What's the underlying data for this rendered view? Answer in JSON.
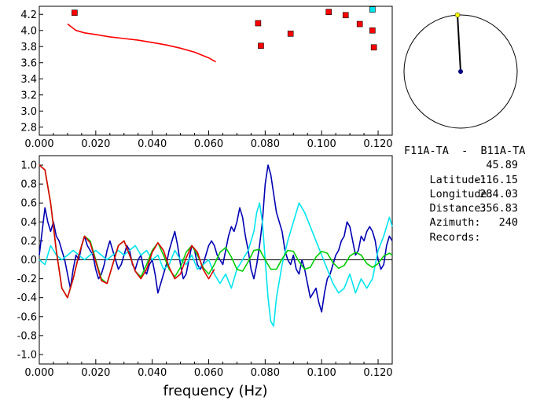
{
  "station": {
    "pair": "F11A-TA  -  B11A-TA",
    "rows": [
      {
        "label": "Latitude:",
        "value": "45.89"
      },
      {
        "label": "Longitude:",
        "value": "-116.15"
      },
      {
        "label": "Distance:",
        "value": "284.03"
      },
      {
        "label": "Azimuth:",
        "value": "356.83"
      },
      {
        "label": "Records:",
        "value": "240"
      }
    ]
  },
  "azimuth_dial": {
    "azimuth_deg": 356.83,
    "needle_color": "#000000",
    "tip_color": "#ffff00",
    "center_color": "#000080"
  },
  "chart_data": [
    {
      "type": "scatter",
      "xlim": [
        0.0,
        0.125
      ],
      "ylim": [
        2.7,
        4.3
      ],
      "xticks": [
        "0.000",
        "0.020",
        "0.040",
        "0.060",
        "0.080",
        "0.100",
        "0.120"
      ],
      "yticks": [
        "2.8",
        "3.0",
        "3.2",
        "3.4",
        "3.6",
        "3.8",
        "4.0",
        "4.2"
      ],
      "series": [
        {
          "color": "#ff0000",
          "style": "line",
          "x": [
            0.01,
            0.013,
            0.016,
            0.02,
            0.025,
            0.03,
            0.035,
            0.04,
            0.045,
            0.05,
            0.055,
            0.06,
            0.0625
          ],
          "y": [
            4.08,
            4.0,
            3.97,
            3.95,
            3.92,
            3.9,
            3.88,
            3.85,
            3.82,
            3.78,
            3.73,
            3.66,
            3.61
          ]
        },
        {
          "color": "#ff0000",
          "style": "markers",
          "x": [
            0.0125,
            0.0775,
            0.0785,
            0.089,
            0.1025,
            0.1085,
            0.1135,
            0.118,
            0.1185
          ],
          "y": [
            4.22,
            4.09,
            3.81,
            3.96,
            4.23,
            4.19,
            4.08,
            4.0,
            3.79
          ]
        },
        {
          "color": "#00e5ee",
          "style": "markers",
          "x": [
            0.118
          ],
          "y": [
            4.26
          ]
        }
      ]
    },
    {
      "type": "line",
      "xlim": [
        0.0,
        0.125
      ],
      "ylim": [
        -1.1,
        1.1
      ],
      "xlabel": "frequency (Hz)",
      "xticks": [
        "0.000",
        "0.020",
        "0.040",
        "0.060",
        "0.080",
        "0.100",
        "0.120"
      ],
      "yticks": [
        "1.0",
        "0.8",
        "0.6",
        "0.4",
        "0.2",
        "0.0",
        "-0.2",
        "-0.4",
        "-0.6",
        "-0.8",
        "-1.0"
      ],
      "series": [
        {
          "color": "#0000b4",
          "x": [
            0.0,
            0.002,
            0.003,
            0.004,
            0.005,
            0.006,
            0.007,
            0.008,
            0.009,
            0.01,
            0.011,
            0.012,
            0.013,
            0.014,
            0.015,
            0.016,
            0.017,
            0.018,
            0.019,
            0.02,
            0.021,
            0.022,
            0.023,
            0.024,
            0.025,
            0.026,
            0.027,
            0.028,
            0.029,
            0.03,
            0.031,
            0.032,
            0.033,
            0.034,
            0.035,
            0.036,
            0.037,
            0.038,
            0.039,
            0.04,
            0.041,
            0.042,
            0.043,
            0.044,
            0.045,
            0.046,
            0.047,
            0.048,
            0.049,
            0.05,
            0.051,
            0.052,
            0.053,
            0.054,
            0.055,
            0.056,
            0.057,
            0.058,
            0.059,
            0.06,
            0.061,
            0.062,
            0.063,
            0.064,
            0.065,
            0.066,
            0.067,
            0.068,
            0.069,
            0.07,
            0.071,
            0.072,
            0.073,
            0.074,
            0.075,
            0.076,
            0.077,
            0.078,
            0.079,
            0.08,
            0.081,
            0.082,
            0.083,
            0.084,
            0.085,
            0.086,
            0.087,
            0.088,
            0.089,
            0.09,
            0.091,
            0.092,
            0.093,
            0.094,
            0.095,
            0.096,
            0.097,
            0.098,
            0.099,
            0.1,
            0.101,
            0.102,
            0.103,
            0.104,
            0.105,
            0.106,
            0.107,
            0.108,
            0.109,
            0.11,
            0.111,
            0.112,
            0.113,
            0.114,
            0.115,
            0.116,
            0.117,
            0.118,
            0.119,
            0.12,
            0.121,
            0.122,
            0.123,
            0.124,
            0.125
          ],
          "y": [
            0.05,
            0.55,
            0.4,
            0.3,
            0.4,
            0.25,
            0.2,
            0.1,
            0.0,
            -0.15,
            -0.3,
            -0.1,
            0.05,
            0.0,
            0.15,
            0.25,
            0.15,
            0.1,
            0.05,
            -0.1,
            -0.2,
            -0.15,
            -0.05,
            0.1,
            0.2,
            0.1,
            0.0,
            -0.1,
            -0.05,
            0.05,
            0.15,
            0.1,
            -0.05,
            -0.1,
            0.0,
            0.05,
            -0.1,
            -0.15,
            -0.05,
            0.0,
            -0.15,
            -0.35,
            -0.25,
            -0.15,
            -0.05,
            0.1,
            0.2,
            0.3,
            0.15,
            -0.05,
            -0.2,
            -0.15,
            0.0,
            0.15,
            0.1,
            -0.05,
            -0.1,
            -0.05,
            0.05,
            0.15,
            0.2,
            0.15,
            0.05,
            0.0,
            -0.05,
            0.1,
            0.25,
            0.35,
            0.3,
            0.4,
            0.55,
            0.45,
            0.25,
            0.1,
            -0.1,
            -0.2,
            -0.05,
            0.15,
            0.4,
            0.8,
            1.0,
            0.9,
            0.7,
            0.5,
            0.4,
            0.3,
            0.1,
            0.0,
            -0.05,
            0.05,
            -0.1,
            -0.15,
            0.0,
            -0.1,
            -0.25,
            -0.4,
            -0.35,
            -0.3,
            -0.45,
            -0.55,
            -0.35,
            -0.2,
            -0.15,
            -0.05,
            0.05,
            0.1,
            0.2,
            0.25,
            0.4,
            0.35,
            0.2,
            0.05,
            0.1,
            0.25,
            0.2,
            0.3,
            0.35,
            0.3,
            0.2,
            0.0,
            -0.1,
            -0.05,
            0.15,
            0.25,
            0.2
          ]
        },
        {
          "color": "#00e5ee",
          "x": [
            0.0,
            0.002,
            0.004,
            0.006,
            0.008,
            0.01,
            0.012,
            0.014,
            0.016,
            0.018,
            0.02,
            0.022,
            0.024,
            0.026,
            0.028,
            0.03,
            0.032,
            0.034,
            0.036,
            0.038,
            0.04,
            0.042,
            0.044,
            0.046,
            0.048,
            0.05,
            0.052,
            0.054,
            0.056,
            0.058,
            0.06,
            0.062,
            0.064,
            0.066,
            0.068,
            0.07,
            0.072,
            0.074,
            0.076,
            0.077,
            0.078,
            0.079,
            0.08,
            0.081,
            0.082,
            0.083,
            0.084,
            0.086,
            0.088,
            0.09,
            0.092,
            0.094,
            0.096,
            0.098,
            0.1,
            0.102,
            0.104,
            0.106,
            0.108,
            0.11,
            0.112,
            0.114,
            0.116,
            0.118,
            0.12,
            0.122,
            0.124,
            0.125
          ],
          "y": [
            0.0,
            -0.05,
            0.15,
            0.05,
            0.0,
            0.05,
            0.1,
            0.05,
            0.0,
            0.05,
            0.1,
            0.05,
            0.0,
            0.05,
            0.1,
            0.05,
            0.1,
            0.15,
            0.05,
            0.1,
            0.0,
            0.05,
            -0.1,
            -0.05,
            0.1,
            0.0,
            -0.05,
            0.05,
            -0.1,
            -0.05,
            0.0,
            -0.15,
            -0.25,
            -0.15,
            -0.3,
            -0.1,
            0.0,
            0.1,
            0.3,
            0.5,
            0.6,
            0.4,
            0.0,
            -0.4,
            -0.65,
            -0.7,
            -0.4,
            -0.05,
            0.2,
            0.4,
            0.6,
            0.5,
            0.35,
            0.2,
            0.05,
            -0.1,
            -0.25,
            -0.35,
            -0.3,
            -0.15,
            -0.35,
            -0.2,
            -0.3,
            -0.2,
            0.1,
            0.25,
            0.45,
            0.35
          ]
        },
        {
          "color": "#00d000",
          "x": [
            0.0,
            0.002,
            0.004,
            0.006,
            0.008,
            0.01,
            0.012,
            0.014,
            0.016,
            0.018,
            0.02,
            0.022,
            0.024,
            0.026,
            0.028,
            0.03,
            0.032,
            0.034,
            0.036,
            0.038,
            0.04,
            0.042,
            0.044,
            0.046,
            0.048,
            0.05,
            0.052,
            0.054,
            0.056,
            0.058,
            0.06,
            0.062,
            0.064,
            0.066,
            0.068,
            0.07,
            0.072,
            0.074,
            0.076,
            0.078,
            0.08,
            0.082,
            0.084,
            0.086,
            0.088,
            0.09,
            0.092,
            0.094,
            0.096,
            0.098,
            0.1,
            0.102,
            0.104,
            0.106,
            0.108,
            0.11,
            0.112,
            0.114,
            0.116,
            0.118,
            0.12,
            0.122,
            0.124,
            0.125
          ],
          "y": [
            1.0,
            0.95,
            0.6,
            0.1,
            -0.3,
            -0.4,
            -0.2,
            0.05,
            0.25,
            0.2,
            0.0,
            -0.2,
            -0.25,
            -0.05,
            0.15,
            0.2,
            0.05,
            -0.12,
            -0.18,
            -0.05,
            0.1,
            0.18,
            0.05,
            -0.1,
            -0.18,
            -0.08,
            0.08,
            0.15,
            0.05,
            -0.08,
            -0.15,
            -0.05,
            0.08,
            0.13,
            0.03,
            -0.1,
            -0.12,
            -0.02,
            0.1,
            0.11,
            0.0,
            -0.1,
            -0.1,
            0.01,
            0.1,
            0.09,
            -0.02,
            -0.1,
            -0.08,
            0.03,
            0.09,
            0.07,
            -0.03,
            -0.09,
            -0.06,
            0.04,
            0.08,
            0.05,
            -0.04,
            -0.08,
            -0.04,
            0.04,
            0.07,
            0.05
          ]
        },
        {
          "color": "#e00000",
          "x": [
            0.0,
            0.002,
            0.004,
            0.006,
            0.008,
            0.01,
            0.012,
            0.014,
            0.016,
            0.018,
            0.02,
            0.022,
            0.024,
            0.026,
            0.028,
            0.03,
            0.032,
            0.034,
            0.036,
            0.038,
            0.04,
            0.042,
            0.044,
            0.046,
            0.048,
            0.05,
            0.052,
            0.054,
            0.056,
            0.058,
            0.06,
            0.062
          ],
          "y": [
            1.0,
            0.95,
            0.6,
            0.1,
            -0.3,
            -0.4,
            -0.2,
            0.05,
            0.25,
            0.18,
            -0.02,
            -0.22,
            -0.25,
            -0.05,
            0.15,
            0.2,
            0.05,
            -0.12,
            -0.2,
            -0.1,
            0.08,
            0.18,
            0.1,
            -0.08,
            -0.2,
            -0.15,
            0.02,
            0.15,
            0.08,
            -0.1,
            -0.2,
            -0.1
          ]
        }
      ]
    }
  ]
}
